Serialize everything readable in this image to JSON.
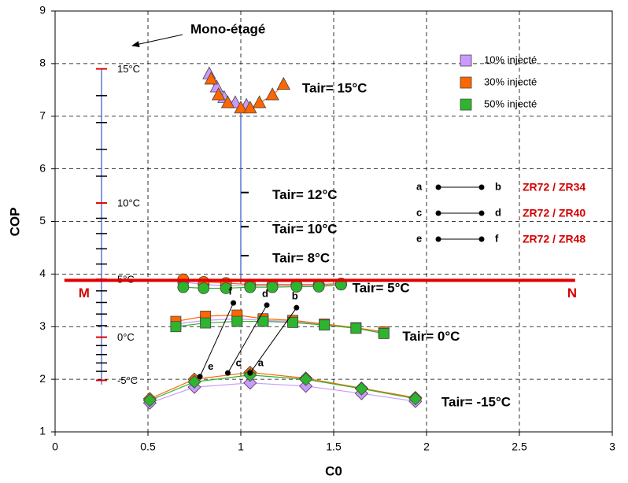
{
  "chart_data": {
    "type": "scatter",
    "xlabel": "C0",
    "ylabel": "COP",
    "xlim": [
      0,
      3
    ],
    "xticks": [
      0,
      0.5,
      1,
      1.5,
      2,
      2.5,
      3
    ],
    "ylim": [
      1,
      9
    ],
    "yticks": [
      1,
      2,
      3,
      4,
      5,
      6,
      7,
      8,
      9
    ],
    "grid": true,
    "legend_position": "upper right",
    "series": [
      {
        "name": "10% injecté",
        "color": "#cc99ff"
      },
      {
        "name": "30% injecté",
        "color": "#ff6600"
      },
      {
        "name": "50% injecté",
        "color": "#2db52d"
      }
    ],
    "groups": [
      {
        "label": "Tair= 15°C",
        "marker": "triangle",
        "data": [
          {
            "x": [
              0.83,
              0.87,
              0.91,
              0.97,
              1.03
            ],
            "values": [
              7.8,
              7.55,
              7.35,
              7.25,
              7.2
            ]
          },
          {
            "x": [
              0.84,
              0.88,
              0.93,
              1.0,
              1.05,
              1.1,
              1.17,
              1.23
            ],
            "values": [
              7.7,
              7.4,
              7.25,
              7.15,
              7.15,
              7.25,
              7.4,
              7.6
            ]
          },
          null
        ]
      },
      {
        "label": "Tair= 5°C",
        "marker": "circle",
        "data": [
          {
            "x": [
              0.69,
              0.8,
              0.92,
              1.05,
              1.17,
              1.3,
              1.42,
              1.54
            ],
            "values": [
              3.85,
              3.8,
              3.78,
              3.78,
              3.78,
              3.78,
              3.78,
              3.8
            ]
          },
          {
            "x": [
              0.69,
              0.8,
              0.92,
              1.05,
              1.17,
              1.3,
              1.42,
              1.54
            ],
            "values": [
              3.9,
              3.85,
              3.83,
              3.8,
              3.8,
              3.8,
              3.8,
              3.82
            ]
          },
          {
            "x": [
              0.69,
              0.8,
              0.92,
              1.05,
              1.17,
              1.3,
              1.42,
              1.54
            ],
            "values": [
              3.75,
              3.73,
              3.73,
              3.75,
              3.75,
              3.76,
              3.76,
              3.8
            ]
          }
        ]
      },
      {
        "label": "Tair= 0°C",
        "marker": "square",
        "data": [
          {
            "x": [
              0.65,
              0.81,
              0.98,
              1.12,
              1.28,
              1.45,
              1.62,
              1.77
            ],
            "values": [
              3.05,
              3.12,
              3.15,
              3.12,
              3.1,
              3.04,
              2.97,
              2.88
            ]
          },
          {
            "x": [
              0.65,
              0.81,
              0.98,
              1.12,
              1.28,
              1.45,
              1.62,
              1.77
            ],
            "values": [
              3.1,
              3.2,
              3.22,
              3.15,
              3.12,
              3.05,
              2.98,
              2.9
            ]
          },
          {
            "x": [
              0.65,
              0.81,
              0.98,
              1.12,
              1.28,
              1.45,
              1.62,
              1.77
            ],
            "values": [
              3.0,
              3.07,
              3.1,
              3.1,
              3.08,
              3.03,
              2.97,
              2.87
            ]
          }
        ]
      },
      {
        "label": "Tair= -15°C",
        "marker": "diamond",
        "data": [
          {
            "x": [
              0.51,
              0.75,
              1.05,
              1.35,
              1.65,
              1.94
            ],
            "values": [
              1.55,
              1.85,
              1.93,
              1.87,
              1.73,
              1.58
            ]
          },
          {
            "x": [
              0.51,
              0.75,
              1.05,
              1.35,
              1.65,
              1.94
            ],
            "values": [
              1.63,
              2.0,
              2.13,
              2.02,
              1.83,
              1.65
            ]
          },
          {
            "x": [
              0.51,
              0.75,
              1.05,
              1.35,
              1.65,
              1.94
            ],
            "values": [
              1.6,
              1.95,
              2.08,
              2.0,
              1.82,
              1.63
            ]
          }
        ]
      }
    ],
    "annotation": "Mono-étagé",
    "temperature_scale": {
      "x": 0.25,
      "ylim": [
        1.9,
        7.9
      ],
      "labels": [
        {
          "value": 7.9,
          "label": "15°C"
        },
        {
          "value": 5.35,
          "label": "10°C"
        },
        {
          "value": 3.9,
          "label": "5°C"
        },
        {
          "value": 2.8,
          "label": "0°C"
        },
        {
          "value": 1.98,
          "label": "-5°C"
        }
      ],
      "minor": [
        7.39,
        6.88,
        6.37,
        5.86,
        5.06,
        4.77,
        4.48,
        4.19,
        3.68,
        3.46,
        3.24,
        3.02,
        2.64,
        2.47,
        2.31,
        2.15
      ]
    },
    "inner_scale": {
      "x": 1,
      "ylim": [
        3.85,
        7.2
      ],
      "ticks": [
        {
          "value": 5.55,
          "label": "Tair= 12°C"
        },
        {
          "value": 4.9,
          "label": "Tair= 10°C"
        },
        {
          "value": 4.35,
          "label": "Tair= 8°C"
        }
      ]
    },
    "reference_line": {
      "y": 3.88,
      "xlim": [
        0.05,
        2.8
      ],
      "labels": [
        "M",
        "N"
      ]
    },
    "links": [
      {
        "from": "a",
        "to": "b",
        "label": "ZR72 / ZR34",
        "x": [
          1.05,
          1.3
        ],
        "values": [
          2.12,
          3.36
        ]
      },
      {
        "from": "c",
        "to": "d",
        "label": "ZR72 / ZR40",
        "x": [
          0.93,
          1.14
        ],
        "values": [
          2.12,
          3.41
        ]
      },
      {
        "from": "e",
        "to": "f",
        "label": "ZR72 / ZR48",
        "x": [
          0.78,
          0.96
        ],
        "values": [
          2.05,
          3.45
        ]
      }
    ]
  }
}
